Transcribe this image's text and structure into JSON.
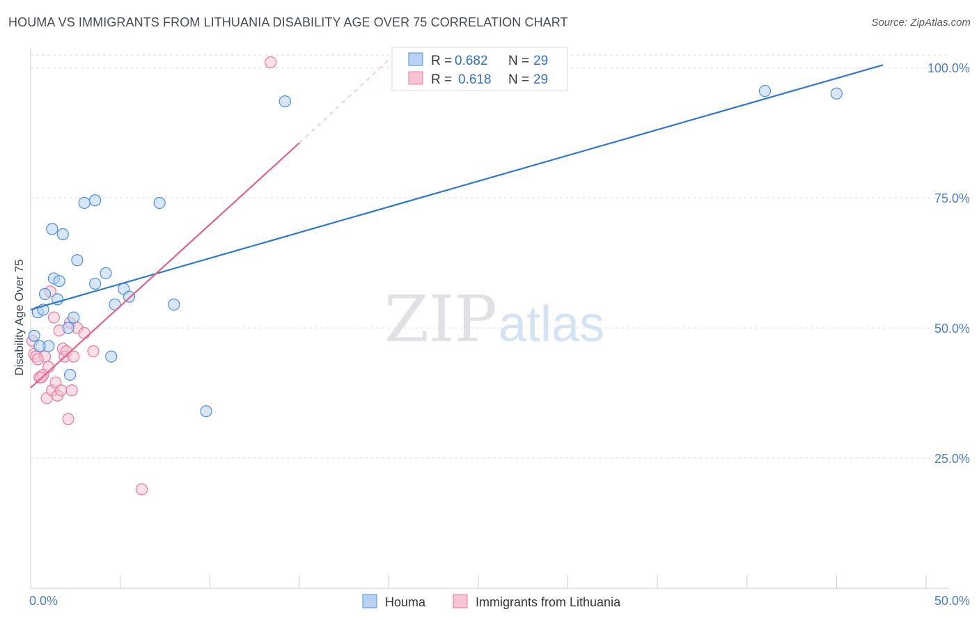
{
  "title": "HOUMA VS IMMIGRANTS FROM LITHUANIA DISABILITY AGE OVER 75 CORRELATION CHART",
  "source": "Source: ZipAtlas.com",
  "watermark": {
    "zip": "ZIP",
    "atlas": "atlas"
  },
  "colors": {
    "blue": "#4a8fdc",
    "blue_fill": "#b7d2f3",
    "blue_line": "#2f78d0",
    "pink": "#e8789e",
    "pink_fill": "#f6c4d4",
    "pink_line": "#e2608a",
    "tick_label": "#4a7fd0",
    "grid": "#d9dde3"
  },
  "stats_legend": [
    {
      "series": "Houma",
      "r_label": "R =",
      "r_value": "0.682",
      "n_label": "N =",
      "n_value": "29"
    },
    {
      "series": "Immigrants from Lithuania",
      "r_label": "R =",
      "r_value": "0.618",
      "n_label": "N =",
      "n_value": "29"
    }
  ],
  "chart_data": {
    "type": "scatter",
    "title": "HOUMA VS IMMIGRANTS FROM LITHUANIA DISABILITY AGE OVER 75 CORRELATION CHART",
    "xlabel": "",
    "ylabel": "Disability Age Over 75",
    "xlim": [
      0,
      50
    ],
    "ylim": [
      0,
      104
    ],
    "x_tick_labels": [
      "0.0%",
      "50.0%"
    ],
    "y_ticks": [
      25,
      50,
      75,
      100
    ],
    "y_tick_labels": [
      "25.0%",
      "50.0%",
      "75.0%",
      "100.0%"
    ],
    "grid": true,
    "legend": [
      "Houma",
      "Immigrants from Lithuania"
    ],
    "series": [
      {
        "name": "Houma",
        "color": "#4a8fdc",
        "points": [
          [
            0.2,
            48.5
          ],
          [
            0.4,
            53
          ],
          [
            0.7,
            53.5
          ],
          [
            0.8,
            56.5
          ],
          [
            1.0,
            46.5
          ],
          [
            1.2,
            69
          ],
          [
            1.3,
            59.5
          ],
          [
            1.5,
            55.5
          ],
          [
            1.6,
            59
          ],
          [
            1.8,
            68
          ],
          [
            2.1,
            50
          ],
          [
            2.4,
            52
          ],
          [
            2.6,
            63
          ],
          [
            3.0,
            74
          ],
          [
            3.6,
            74.5
          ],
          [
            3.6,
            58.5
          ],
          [
            4.2,
            60.5
          ],
          [
            4.5,
            44.5
          ],
          [
            4.7,
            54.5
          ],
          [
            5.2,
            57.5
          ],
          [
            5.5,
            56
          ],
          [
            7.2,
            74
          ],
          [
            8.0,
            54.5
          ],
          [
            9.8,
            34
          ],
          [
            14.2,
            93.5
          ],
          [
            41,
            95.5
          ],
          [
            45,
            95
          ],
          [
            2.2,
            41
          ],
          [
            0.5,
            46.5
          ]
        ],
        "trend": {
          "x": [
            0,
            47.6
          ],
          "y": [
            53.5,
            100.5
          ]
        }
      },
      {
        "name": "Immigrants from Lithuania",
        "color": "#e8789e",
        "points": [
          [
            0.1,
            47.5
          ],
          [
            0.2,
            45
          ],
          [
            0.3,
            44.5
          ],
          [
            0.5,
            40.5
          ],
          [
            0.7,
            41
          ],
          [
            0.8,
            44.5
          ],
          [
            0.9,
            36.5
          ],
          [
            1.0,
            42.5
          ],
          [
            1.1,
            57
          ],
          [
            1.2,
            38
          ],
          [
            1.3,
            52
          ],
          [
            1.4,
            39.5
          ],
          [
            1.5,
            37
          ],
          [
            1.6,
            49.5
          ],
          [
            1.7,
            38
          ],
          [
            1.8,
            46
          ],
          [
            1.9,
            44.5
          ],
          [
            2.0,
            45.5
          ],
          [
            2.1,
            32.5
          ],
          [
            2.2,
            51
          ],
          [
            2.3,
            38
          ],
          [
            2.4,
            44.5
          ],
          [
            2.6,
            50
          ],
          [
            3.0,
            49
          ],
          [
            3.5,
            45.5
          ],
          [
            6.2,
            19
          ],
          [
            13.4,
            101
          ],
          [
            0.4,
            44
          ],
          [
            0.6,
            40.5
          ]
        ],
        "trend": {
          "x": [
            0,
            15
          ],
          "y": [
            38.5,
            85.5
          ]
        },
        "trend_extension": {
          "x": [
            15,
            20
          ],
          "y": [
            85.5,
            101.5
          ]
        }
      }
    ]
  }
}
